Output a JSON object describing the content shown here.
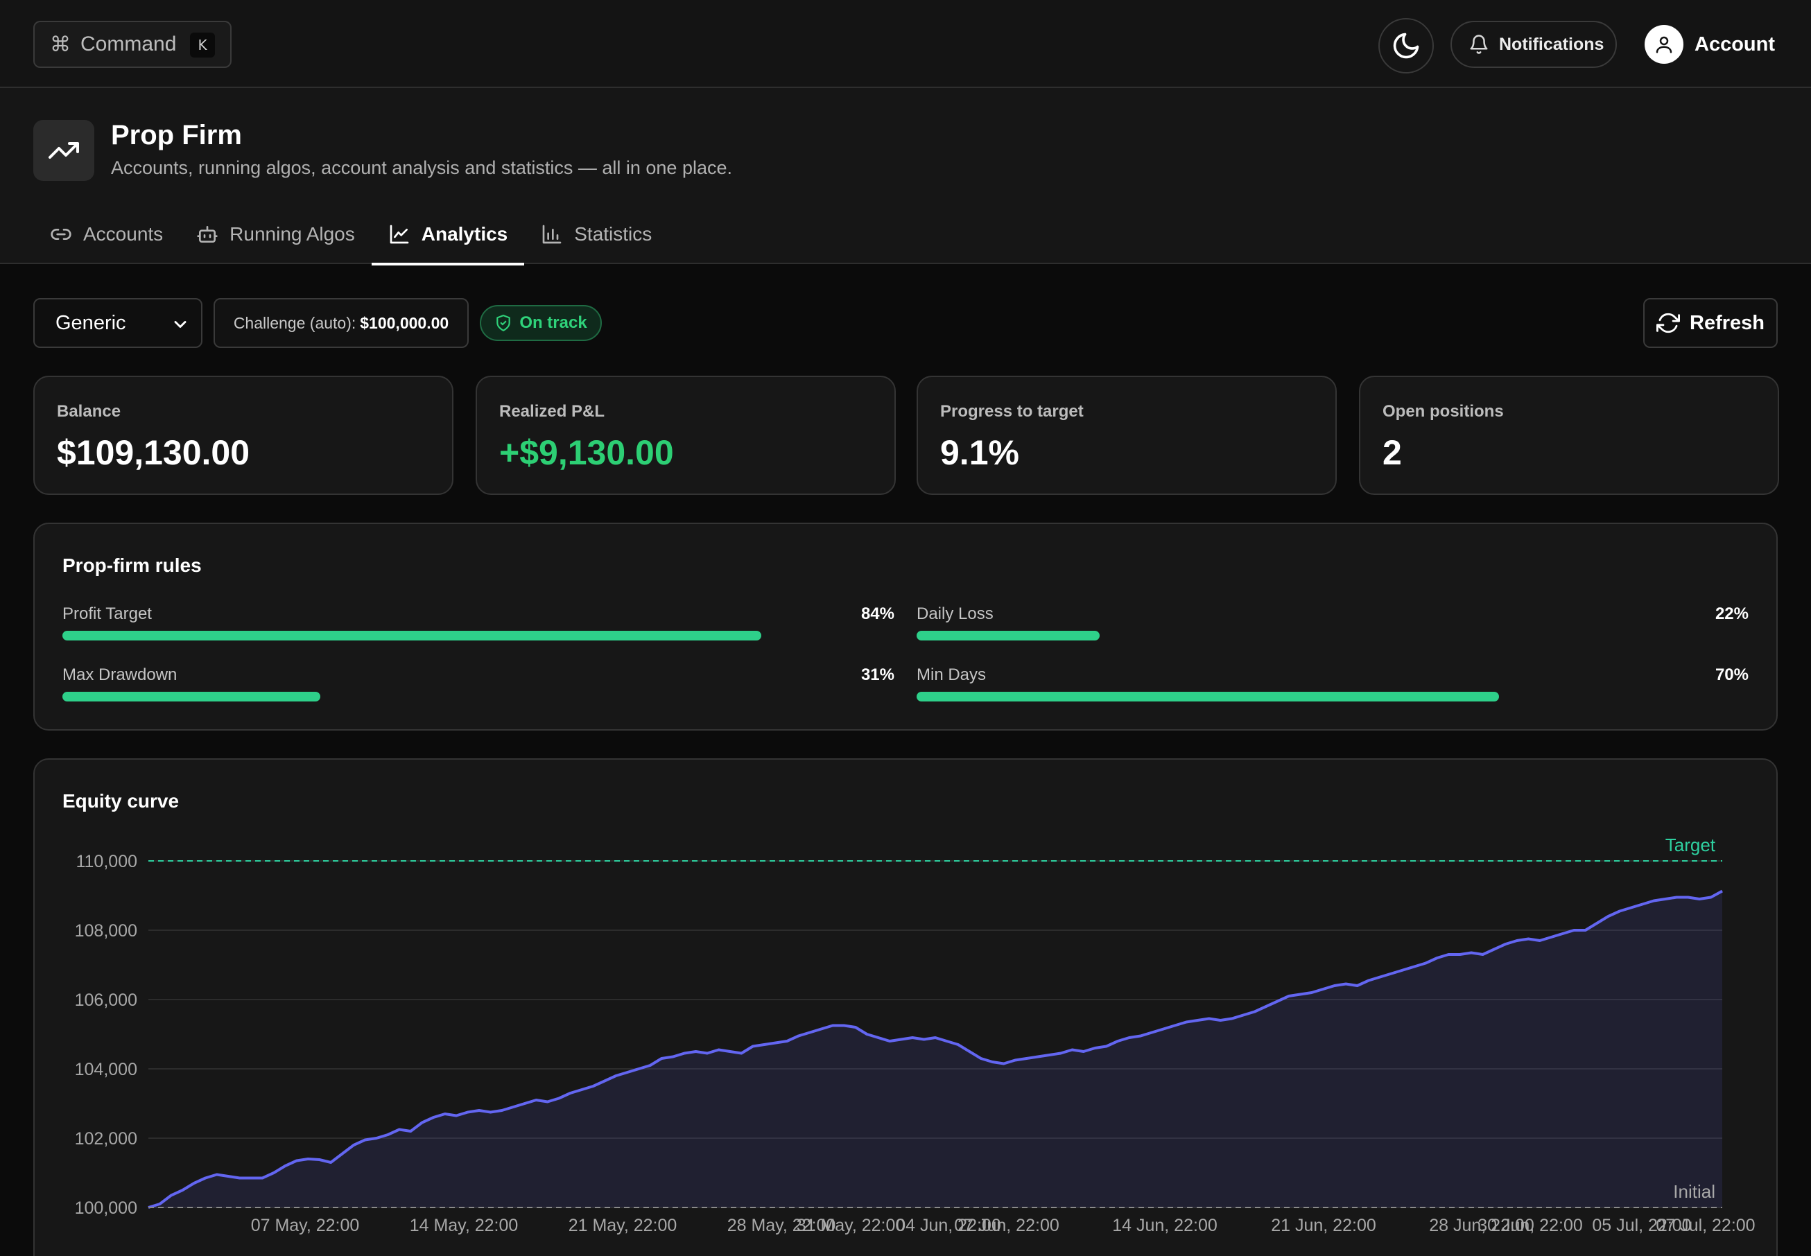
{
  "topbar": {
    "command_label": "Command",
    "command_key": "K",
    "notifications_label": "Notifications",
    "account_label": "Account"
  },
  "header": {
    "title": "Prop Firm",
    "subtitle": "Accounts, running algos, account analysis and statistics — all in one place.",
    "tabs": [
      {
        "label": "Accounts",
        "icon": "link-icon"
      },
      {
        "label": "Running Algos",
        "icon": "bot-icon"
      },
      {
        "label": "Analytics",
        "icon": "line-chart-icon",
        "active": true
      },
      {
        "label": "Statistics",
        "icon": "bar-chart-icon"
      }
    ]
  },
  "toolbar": {
    "account_select_value": "Generic",
    "challenge_label": "Challenge (auto):",
    "challenge_value": "$100,000.00",
    "status_badge": "On track",
    "refresh_label": "Refresh"
  },
  "kpis": [
    {
      "label": "Balance",
      "value": "$109,130.00"
    },
    {
      "label": "Realized P&L",
      "value": "+$9,130.00"
    },
    {
      "label": "Progress to target",
      "value": "9.1%"
    },
    {
      "label": "Open positions",
      "value": "2"
    }
  ],
  "rules": {
    "title": "Prop-firm rules",
    "items": [
      {
        "label": "Profit Target",
        "percent_text": "84%",
        "fraction": 0.84
      },
      {
        "label": "Daily Loss",
        "percent_text": "22%",
        "fraction": 0.22
      },
      {
        "label": "Max Drawdown",
        "percent_text": "31%",
        "fraction": 0.31
      },
      {
        "label": "Min Days",
        "percent_text": "70%",
        "fraction": 0.7
      }
    ]
  },
  "colors": {
    "accent_green": "#2dcf74",
    "rule_bar": "#2ed08a",
    "equity_line": "#6366f1",
    "target_line": "#2ed0a0"
  },
  "chart_data": {
    "type": "area",
    "title": "Equity curve",
    "ylim": [
      100000,
      110000
    ],
    "y_ticks": [
      "110,000",
      "108,000",
      "106,000",
      "104,000",
      "102,000",
      "100,000"
    ],
    "x_ticks": [
      "07 May, 22:00",
      "14 May, 22:00",
      "21 May, 22:00",
      "28 May, 22:00",
      "31 May, 22:00",
      "04 Jun, 22:00",
      "07 Jun, 22:00",
      "14 Jun, 22:00",
      "21 Jun, 22:00",
      "28 Jun, 22:00",
      "30 Jun, 22:00",
      "05 Jul, 22:00",
      "07 Jul, 22:00"
    ],
    "reference_lines": [
      {
        "label": "Target",
        "value": 110000
      },
      {
        "label": "Initial",
        "value": 100000
      }
    ],
    "grid": true,
    "series": [
      {
        "values": [
          100000,
          100100,
          100350,
          100500,
          100700,
          100850,
          100950,
          100900,
          100850,
          100850,
          100850,
          101000,
          101200,
          101350,
          101400,
          101380,
          101300,
          101550,
          101800,
          101950,
          102000,
          102100,
          102250,
          102200,
          102450,
          102600,
          102700,
          102650,
          102750,
          102800,
          102750,
          102800,
          102900,
          103000,
          103100,
          103050,
          103150,
          103300,
          103400,
          103500,
          103650,
          103800,
          103900,
          104000,
          104100,
          104300,
          104350,
          104450,
          104500,
          104450,
          104550,
          104500,
          104450,
          104650,
          104700,
          104750,
          104800,
          104950,
          105050,
          105150,
          105250,
          105250,
          105200,
          105000,
          104900,
          104800,
          104850,
          104900,
          104850,
          104900,
          104800,
          104700,
          104500,
          104300,
          104200,
          104150,
          104250,
          104300,
          104350,
          104400,
          104450,
          104550,
          104500,
          104600,
          104650,
          104800,
          104900,
          104950,
          105050,
          105150,
          105250,
          105350,
          105400,
          105450,
          105400,
          105450,
          105550,
          105650,
          105800,
          105950,
          106100,
          106150,
          106200,
          106300,
          106400,
          106450,
          106400,
          106550,
          106650,
          106750,
          106850,
          106950,
          107050,
          107200,
          107300,
          107300,
          107350,
          107300,
          107450,
          107600,
          107700,
          107750,
          107700,
          107800,
          107900,
          108000,
          108000,
          108200,
          108400,
          108550,
          108650,
          108750,
          108850,
          108900,
          108950,
          108950,
          108900,
          108950,
          109130
        ]
      }
    ]
  }
}
